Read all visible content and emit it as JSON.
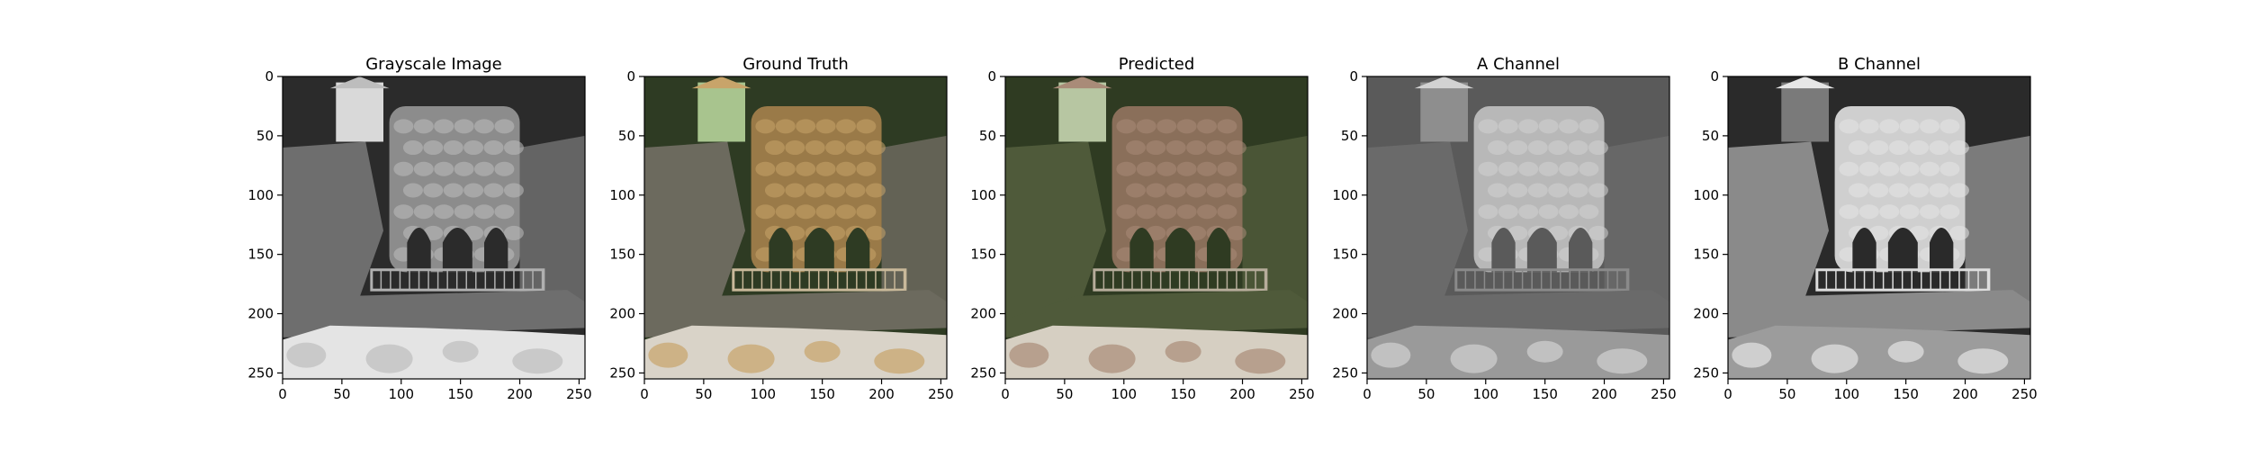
{
  "chart_data": [
    {
      "type": "image",
      "title": "Grayscale Image",
      "xlim": [
        0,
        255
      ],
      "ylim": [
        255,
        0
      ],
      "xticks": [
        0,
        50,
        100,
        150,
        200,
        250
      ],
      "yticks": [
        0,
        50,
        100,
        150,
        200,
        250
      ],
      "palette": {
        "sky": "#d9d9d9",
        "foliage": "#2b2b2b",
        "rock": "#6e6e6e",
        "tower": "#8c8c8c",
        "stone": "#bdbdbd",
        "railing": "#b0b0b0",
        "ground": "#e4e4e4"
      }
    },
    {
      "type": "image",
      "title": "Ground Truth",
      "xlim": [
        0,
        255
      ],
      "ylim": [
        255,
        0
      ],
      "xticks": [
        0,
        50,
        100,
        150,
        200,
        250
      ],
      "yticks": [
        0,
        50,
        100,
        150,
        200,
        250
      ],
      "palette": {
        "sky": "#a8c48e",
        "foliage": "#2e3b23",
        "rock": "#6c6a5e",
        "tower": "#9a7a48",
        "stone": "#c8a46a",
        "railing": "#c9b99a",
        "ground": "#d9d3c8"
      }
    },
    {
      "type": "image",
      "title": "Predicted",
      "xlim": [
        0,
        255
      ],
      "ylim": [
        255,
        0
      ],
      "xticks": [
        0,
        50,
        100,
        150,
        200,
        250
      ],
      "yticks": [
        0,
        50,
        100,
        150,
        200,
        250
      ],
      "palette": {
        "sky": "#b7c6a2",
        "foliage": "#2f3b22",
        "rock": "#4f5a3a",
        "tower": "#8a6f5a",
        "stone": "#a98b78",
        "railing": "#b7ad9b",
        "ground": "#d6cfc2"
      }
    },
    {
      "type": "image",
      "title": "A Channel",
      "xlim": [
        0,
        255
      ],
      "ylim": [
        255,
        0
      ],
      "xticks": [
        0,
        50,
        100,
        150,
        200,
        250
      ],
      "yticks": [
        0,
        50,
        100,
        150,
        200,
        250
      ],
      "palette": {
        "sky": "#8e8e8e",
        "foliage": "#5a5a5a",
        "rock": "#6a6a6a",
        "tower": "#b8b8b8",
        "stone": "#d2d2d2",
        "railing": "#8a8a8a",
        "ground": "#9a9a9a"
      }
    },
    {
      "type": "image",
      "title": "B Channel",
      "xlim": [
        0,
        255
      ],
      "ylim": [
        255,
        0
      ],
      "xticks": [
        0,
        50,
        100,
        150,
        200,
        250
      ],
      "yticks": [
        0,
        50,
        100,
        150,
        200,
        250
      ],
      "palette": {
        "sky": "#7a7a7a",
        "foliage": "#2a2a2a",
        "rock": "#8a8a8a",
        "tower": "#cfcfcf",
        "stone": "#e6e6e6",
        "railing": "#dedede",
        "ground": "#9c9c9c"
      }
    }
  ]
}
